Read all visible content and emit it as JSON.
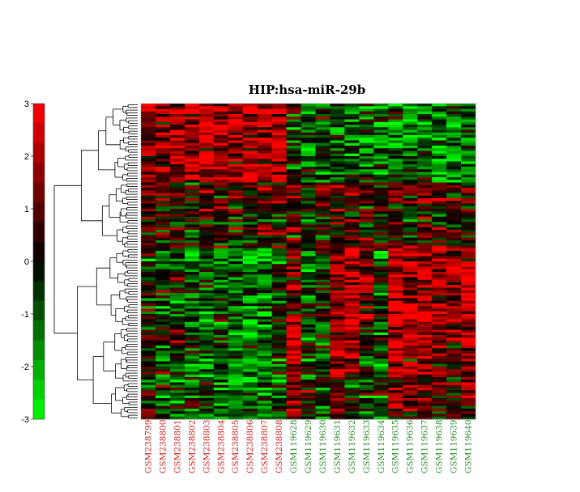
{
  "chart_data": {
    "type": "heatmap",
    "title": "HIP:hsa-miR-29b",
    "xlabel": "",
    "ylabel": "",
    "color_scale": {
      "min": -3,
      "max": 3,
      "ticks": [
        3,
        2,
        1,
        0,
        -1,
        -2,
        -3
      ],
      "low_color": "#00ff00",
      "mid_color": "#000000",
      "high_color": "#ff0000"
    },
    "group_colors": {
      "GSM2388": "#cc2222",
      "GSM1196": "#2e8b2e"
    },
    "columns": [
      {
        "label": "GSM238799",
        "group": "GSM2388"
      },
      {
        "label": "GSM238800",
        "group": "GSM2388"
      },
      {
        "label": "GSM238801",
        "group": "GSM2388"
      },
      {
        "label": "GSM238802",
        "group": "GSM2388"
      },
      {
        "label": "GSM238803",
        "group": "GSM2388"
      },
      {
        "label": "GSM238804",
        "group": "GSM2388"
      },
      {
        "label": "GSM238805",
        "group": "GSM2388"
      },
      {
        "label": "GSM238806",
        "group": "GSM2388"
      },
      {
        "label": "GSM238807",
        "group": "GSM2388"
      },
      {
        "label": "GSM238808",
        "group": "GSM2388"
      },
      {
        "label": "GSM119628",
        "group": "GSM1196"
      },
      {
        "label": "GSM119629",
        "group": "GSM1196"
      },
      {
        "label": "GSM119630",
        "group": "GSM1196"
      },
      {
        "label": "GSM119631",
        "group": "GSM1196"
      },
      {
        "label": "GSM119632",
        "group": "GSM1196"
      },
      {
        "label": "GSM119633",
        "group": "GSM1196"
      },
      {
        "label": "GSM119634",
        "group": "GSM1196"
      },
      {
        "label": "GSM119635",
        "group": "GSM1196"
      },
      {
        "label": "GSM119636",
        "group": "GSM1196"
      },
      {
        "label": "GSM119637",
        "group": "GSM1196"
      },
      {
        "label": "GSM119638",
        "group": "GSM1196"
      },
      {
        "label": "GSM119639",
        "group": "GSM1196"
      },
      {
        "label": "GSM119640",
        "group": "GSM1196"
      }
    ],
    "row_count": 120,
    "row_blocks": [
      {
        "rows": [
          0,
          30
        ],
        "values": [
          1.6,
          1.8,
          2.0,
          1.7,
          2.2,
          1.8,
          2.0,
          2.2,
          2.0,
          2.3,
          -0.4,
          -1.2,
          -0.5,
          -0.9,
          -0.8,
          -1.0,
          -1.3,
          -1.2,
          -1.4,
          -1.3,
          -1.6,
          -1.6,
          -1.5
        ]
      },
      {
        "rows": [
          30,
          55
        ],
        "values": [
          0.6,
          0.4,
          0.2,
          -0.3,
          0.4,
          0.3,
          0.6,
          0.4,
          0.5,
          0.8,
          0.9,
          -0.1,
          0.6,
          0.7,
          0.8,
          0.6,
          0.2,
          0.4,
          0.4,
          0.8,
          0.5,
          0.1,
          0.0
        ]
      },
      {
        "rows": [
          55,
          85
        ],
        "values": [
          0.1,
          -0.9,
          -0.7,
          -1.3,
          -1.4,
          -1.2,
          -1.2,
          -1.3,
          -1.3,
          -0.6,
          1.0,
          -0.8,
          -0.2,
          1.6,
          2.0,
          1.3,
          -1.0,
          2.5,
          2.3,
          2.0,
          1.7,
          1.3,
          2.2
        ]
      },
      {
        "rows": [
          85,
          105
        ],
        "values": [
          0.0,
          -0.7,
          -0.4,
          -1.0,
          -1.4,
          -1.0,
          -1.5,
          -1.4,
          -1.3,
          -0.7,
          1.8,
          -0.8,
          -0.5,
          1.6,
          1.4,
          -0.6,
          -1.2,
          1.8,
          2.0,
          1.6,
          1.2,
          0.9,
          1.4
        ]
      },
      {
        "rows": [
          105,
          120
        ],
        "values": [
          0.3,
          -0.6,
          -0.8,
          -0.4,
          -0.9,
          -1.1,
          -1.0,
          -1.1,
          -1.0,
          -0.4,
          1.5,
          0.4,
          -0.7,
          0.8,
          -0.3,
          -0.8,
          -0.5,
          1.2,
          1.1,
          0.9,
          0.6,
          0.3,
          0.9
        ]
      }
    ],
    "noise_amplitude": 2.2,
    "random_seed": 29,
    "row_dendrogram": true,
    "legend": "left"
  }
}
